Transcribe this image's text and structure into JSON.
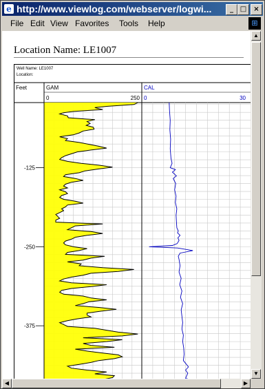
{
  "window": {
    "title": "http://www.viewlog.com/webserver/logwi...",
    "icon": "ie-icon",
    "controls": {
      "minimize": "_",
      "maximize": "□",
      "close": "×"
    }
  },
  "menu": [
    "File",
    "Edit",
    "View",
    "Favorites",
    "Tools",
    "Help"
  ],
  "page": {
    "location_title": "Location Name: LE1007",
    "well_name_label": "Well Name: LE1007",
    "location_label": "Location:",
    "depth_label": "Feet"
  },
  "tracks": [
    {
      "name": "GAM",
      "min": "0",
      "max": "250",
      "color": "#000000",
      "fill": "#ffff00"
    },
    {
      "name": "CAL",
      "min": "0",
      "max": "30",
      "color": "#0000c0"
    }
  ],
  "depth_ticks": [
    "-125",
    "-250",
    "-375"
  ],
  "chart_data": {
    "type": "line",
    "y_unit": "Feet",
    "depth_range": [
      -22,
      -475
    ],
    "series": [
      {
        "name": "GAM",
        "xlim": [
          0,
          250
        ],
        "points": [
          [
            -22,
            240
          ],
          [
            -25,
            230
          ],
          [
            -28,
            160
          ],
          [
            -30,
            130
          ],
          [
            -33,
            150
          ],
          [
            -36,
            75
          ],
          [
            -38,
            50
          ],
          [
            -40,
            40
          ],
          [
            -43,
            60
          ],
          [
            -46,
            62
          ],
          [
            -49,
            130
          ],
          [
            -52,
            110
          ],
          [
            -55,
            118
          ],
          [
            -58,
            108
          ],
          [
            -61,
            126
          ],
          [
            -64,
            128
          ],
          [
            -67,
            100
          ],
          [
            -70,
            90
          ],
          [
            -73,
            75
          ],
          [
            -76,
            40
          ],
          [
            -79,
            60
          ],
          [
            -82,
            55
          ],
          [
            -85,
            90
          ],
          [
            -88,
            115
          ],
          [
            -91,
            140
          ],
          [
            -94,
            160
          ],
          [
            -97,
            120
          ],
          [
            -100,
            85
          ],
          [
            -103,
            70
          ],
          [
            -106,
            55
          ],
          [
            -109,
            45
          ],
          [
            -112,
            40
          ],
          [
            -115,
            60
          ],
          [
            -118,
            95
          ],
          [
            -121,
            140
          ],
          [
            -124,
            175
          ],
          [
            -127,
            140
          ],
          [
            -130,
            105
          ],
          [
            -133,
            90
          ],
          [
            -136,
            55
          ],
          [
            -139,
            50
          ],
          [
            -142,
            80
          ],
          [
            -145,
            100
          ],
          [
            -148,
            70
          ],
          [
            -151,
            55
          ],
          [
            -154,
            50
          ],
          [
            -157,
            60
          ],
          [
            -160,
            40
          ],
          [
            -163,
            55
          ],
          [
            -166,
            60
          ],
          [
            -169,
            45
          ],
          [
            -172,
            40
          ],
          [
            -175,
            50
          ],
          [
            -178,
            80
          ],
          [
            -181,
            100
          ],
          [
            -184,
            60
          ],
          [
            -187,
            55
          ],
          [
            -190,
            45
          ],
          [
            -193,
            50
          ],
          [
            -196,
            40
          ],
          [
            -199,
            30
          ],
          [
            -202,
            35
          ],
          [
            -205,
            40
          ],
          [
            -208,
            30
          ],
          [
            -211,
            30
          ],
          [
            -214,
            150
          ],
          [
            -217,
            80
          ],
          [
            -220,
            70
          ],
          [
            -223,
            60
          ],
          [
            -226,
            120
          ],
          [
            -229,
            150
          ],
          [
            -232,
            110
          ],
          [
            -235,
            80
          ],
          [
            -238,
            70
          ],
          [
            -241,
            55
          ],
          [
            -244,
            50
          ],
          [
            -247,
            55
          ],
          [
            -250,
            75
          ],
          [
            -253,
            110
          ],
          [
            -256,
            90
          ],
          [
            -259,
            60
          ],
          [
            -262,
            55
          ],
          [
            -265,
            155
          ],
          [
            -268,
            120
          ],
          [
            -271,
            100
          ],
          [
            -274,
            60
          ],
          [
            -277,
            95
          ],
          [
            -280,
            90
          ],
          [
            -283,
            150
          ],
          [
            -286,
            230
          ],
          [
            -289,
            190
          ],
          [
            -292,
            120
          ],
          [
            -295,
            100
          ],
          [
            -298,
            70
          ],
          [
            -301,
            50
          ],
          [
            -304,
            40
          ],
          [
            -307,
            70
          ],
          [
            -310,
            160
          ],
          [
            -313,
            120
          ],
          [
            -316,
            70
          ],
          [
            -319,
            45
          ],
          [
            -322,
            40
          ],
          [
            -325,
            50
          ],
          [
            -328,
            100
          ],
          [
            -331,
            120
          ],
          [
            -334,
            160
          ],
          [
            -337,
            115
          ],
          [
            -340,
            100
          ],
          [
            -343,
            80
          ],
          [
            -346,
            140
          ],
          [
            -349,
            185
          ],
          [
            -352,
            145
          ],
          [
            -355,
            110
          ],
          [
            -358,
            110
          ],
          [
            -361,
            120
          ],
          [
            -364,
            85
          ],
          [
            -367,
            60
          ],
          [
            -370,
            40
          ],
          [
            -373,
            50
          ],
          [
            -376,
            60
          ],
          [
            -379,
            130
          ],
          [
            -382,
            160
          ],
          [
            -385,
            190
          ],
          [
            -388,
            240
          ],
          [
            -391,
            200
          ],
          [
            -394,
            100
          ],
          [
            -397,
            200
          ],
          [
            -400,
            160
          ],
          [
            -403,
            100
          ],
          [
            -406,
            120
          ],
          [
            -409,
            180
          ],
          [
            -412,
            80
          ],
          [
            -415,
            110
          ],
          [
            -418,
            150
          ],
          [
            -421,
            190
          ],
          [
            -424,
            200
          ],
          [
            -427,
            180
          ],
          [
            -430,
            140
          ],
          [
            -433,
            120
          ],
          [
            -436,
            90
          ],
          [
            -439,
            60
          ],
          [
            -442,
            70
          ],
          [
            -445,
            110
          ],
          [
            -448,
            160
          ],
          [
            -451,
            130
          ],
          [
            -454,
            180
          ],
          [
            -457,
            175
          ],
          [
            -460,
            150
          ],
          [
            -463,
            160
          ],
          [
            -466,
            155
          ],
          [
            -469,
            140
          ],
          [
            -472,
            140
          ],
          [
            -475,
            130
          ]
        ]
      },
      {
        "name": "CAL",
        "xlim": [
          0,
          30
        ],
        "points": [
          [
            -22,
            7.5
          ],
          [
            -35,
            7.6
          ],
          [
            -50,
            7.8
          ],
          [
            -65,
            7.7
          ],
          [
            -80,
            7.9
          ],
          [
            -95,
            7.8
          ],
          [
            -110,
            8.0
          ],
          [
            -118,
            8.3
          ],
          [
            -125,
            7.8
          ],
          [
            -128,
            9.2
          ],
          [
            -132,
            8.4
          ],
          [
            -138,
            9.5
          ],
          [
            -142,
            8.6
          ],
          [
            -150,
            9.3
          ],
          [
            -160,
            9.0
          ],
          [
            -170,
            9.4
          ],
          [
            -180,
            9.2
          ],
          [
            -190,
            9.6
          ],
          [
            -200,
            9.4
          ],
          [
            -210,
            9.5
          ],
          [
            -220,
            9.6
          ],
          [
            -225,
            10.0
          ],
          [
            -228,
            9.8
          ],
          [
            -232,
            10.5
          ],
          [
            -236,
            9.9
          ],
          [
            -240,
            10.2
          ],
          [
            -245,
            9.7
          ],
          [
            -248,
            8.4
          ],
          [
            -250,
            2.0
          ],
          [
            -252,
            9.8
          ],
          [
            -256,
            14.0
          ],
          [
            -260,
            10.5
          ],
          [
            -265,
            10.0
          ],
          [
            -270,
            10.2
          ],
          [
            -280,
            10.5
          ],
          [
            -290,
            10.2
          ],
          [
            -300,
            10.8
          ],
          [
            -310,
            10.4
          ],
          [
            -320,
            11.0
          ],
          [
            -330,
            10.6
          ],
          [
            -340,
            11.2
          ],
          [
            -350,
            10.8
          ],
          [
            -360,
            11.0
          ],
          [
            -370,
            11.2
          ],
          [
            -380,
            11.0
          ],
          [
            -390,
            11.4
          ],
          [
            -400,
            11.2
          ],
          [
            -410,
            11.5
          ],
          [
            -420,
            11.6
          ],
          [
            -430,
            11.4
          ],
          [
            -440,
            12.8
          ],
          [
            -445,
            12.0
          ],
          [
            -450,
            12.6
          ],
          [
            -458,
            12.0
          ],
          [
            -462,
            14.5
          ],
          [
            -465,
            13.0
          ],
          [
            -470,
            12.5
          ],
          [
            -475,
            12.4
          ]
        ]
      }
    ],
    "ylabel": "Feet",
    "grid": true
  }
}
